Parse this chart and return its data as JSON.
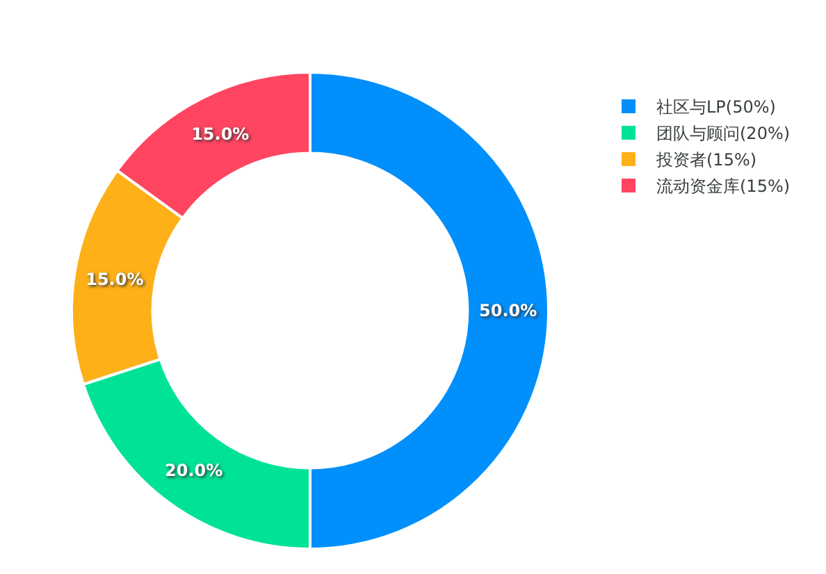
{
  "chart_data": {
    "type": "donut",
    "categories": [
      "社区与LP(50%)",
      "团队与顾问(20%)",
      "投资者(15%)",
      "流动资金库(15%)"
    ],
    "values": [
      50,
      20,
      15,
      15
    ],
    "colors": [
      "#008ffb",
      "#00e396",
      "#feb019",
      "#ff4560"
    ],
    "value_labels": [
      "50.0%",
      "20.0%",
      "15.0%",
      "15.0%"
    ],
    "legend": "top right"
  }
}
